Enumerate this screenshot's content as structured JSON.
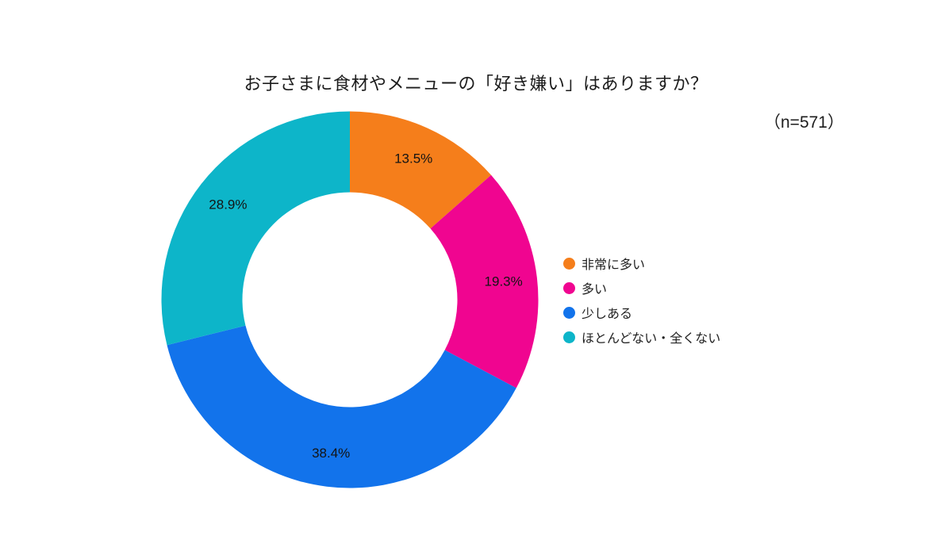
{
  "chart_data": {
    "type": "pie",
    "subtype": "donut",
    "title": "お子さまに食材やメニューの「好き嫌い」はありますか？",
    "sample_size_label": "（n=571）",
    "n": 571,
    "categories": [
      "非常に多い",
      "多い",
      "少しある",
      "ほとんどない・全くない"
    ],
    "values": [
      13.5,
      19.3,
      38.4,
      28.9
    ],
    "value_labels": [
      "13.5%",
      "19.3%",
      "38.4%",
      "28.9%"
    ],
    "colors": [
      "#F57E1B",
      "#F00590",
      "#1273EB",
      "#0DB5C9"
    ],
    "unit": "%",
    "start_angle": "top",
    "direction": "clockwise",
    "legend_position": "right",
    "background_color": "#ffffff",
    "label_color": "#141414"
  }
}
